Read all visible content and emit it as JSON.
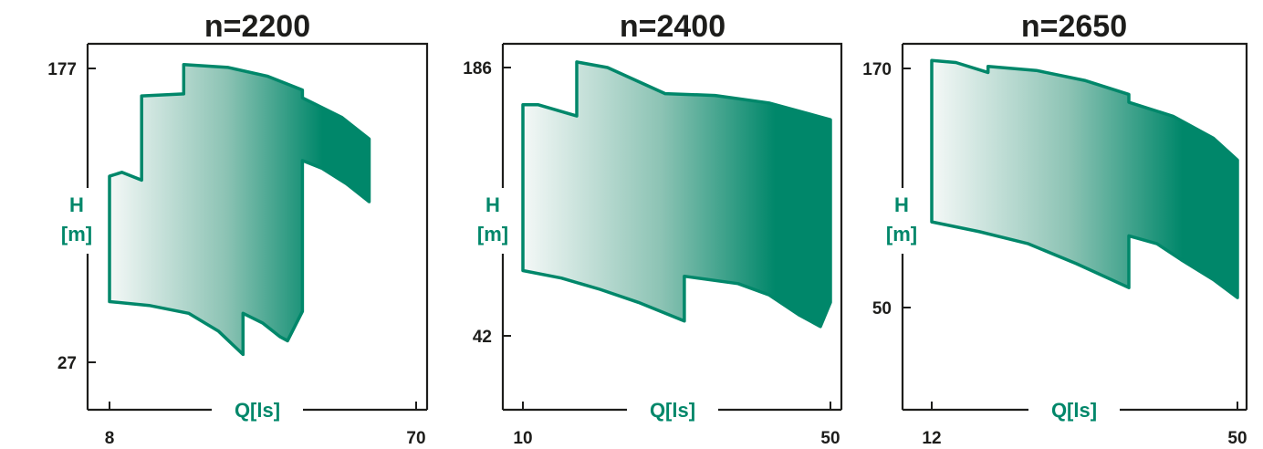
{
  "colors": {
    "accent": "#00876a",
    "gradient_start": "#f4f8f7",
    "axis": "#1d1d1b",
    "text": "#1d1d1b"
  },
  "chart_data": [
    {
      "type": "area",
      "title": "n=2200",
      "xlabel": "Q[ls]",
      "ylabel_lines": [
        "H",
        "[m]"
      ],
      "x_ticks": [
        "8",
        "70"
      ],
      "y_ticks": [
        "177",
        "27"
      ],
      "xlim": [
        8,
        70
      ],
      "ylim": [
        27,
        177
      ],
      "envelope": [
        {
          "x": 8,
          "y": 122
        },
        {
          "x": 10.5,
          "y": 124
        },
        {
          "x": 14.5,
          "y": 120
        },
        {
          "x": 14.5,
          "y": 163
        },
        {
          "x": 23,
          "y": 164
        },
        {
          "x": 23,
          "y": 179
        },
        {
          "x": 32,
          "y": 177.5
        },
        {
          "x": 40,
          "y": 173
        },
        {
          "x": 47,
          "y": 166
        },
        {
          "x": 47,
          "y": 162
        },
        {
          "x": 55,
          "y": 152
        },
        {
          "x": 60.5,
          "y": 141
        },
        {
          "x": 60.5,
          "y": 109
        },
        {
          "x": 56,
          "y": 118
        },
        {
          "x": 51,
          "y": 126
        },
        {
          "x": 47,
          "y": 130
        },
        {
          "x": 47,
          "y": 53
        },
        {
          "x": 44,
          "y": 38
        },
        {
          "x": 42.5,
          "y": 40
        },
        {
          "x": 39,
          "y": 47
        },
        {
          "x": 35,
          "y": 52
        },
        {
          "x": 35,
          "y": 31
        },
        {
          "x": 30,
          "y": 43
        },
        {
          "x": 24,
          "y": 52
        },
        {
          "x": 16,
          "y": 56
        },
        {
          "x": 8,
          "y": 58
        }
      ]
    },
    {
      "type": "area",
      "title": "n=2400",
      "xlabel": "Q[ls]",
      "ylabel_lines": [
        "H",
        "[m]"
      ],
      "x_ticks": [
        "10",
        "50"
      ],
      "y_ticks": [
        "186",
        "42"
      ],
      "xlim": [
        10,
        50
      ],
      "ylim": [
        42,
        186
      ],
      "envelope": [
        {
          "x": 10,
          "y": 166
        },
        {
          "x": 12,
          "y": 166
        },
        {
          "x": 17,
          "y": 160
        },
        {
          "x": 17,
          "y": 189
        },
        {
          "x": 21,
          "y": 186
        },
        {
          "x": 28.5,
          "y": 172
        },
        {
          "x": 35,
          "y": 171
        },
        {
          "x": 42,
          "y": 167
        },
        {
          "x": 50,
          "y": 158
        },
        {
          "x": 50,
          "y": 60
        },
        {
          "x": 48.7,
          "y": 47
        },
        {
          "x": 46,
          "y": 53
        },
        {
          "x": 42,
          "y": 64
        },
        {
          "x": 38,
          "y": 70
        },
        {
          "x": 31,
          "y": 74
        },
        {
          "x": 31,
          "y": 50
        },
        {
          "x": 25,
          "y": 60
        },
        {
          "x": 20,
          "y": 67
        },
        {
          "x": 15,
          "y": 73
        },
        {
          "x": 10,
          "y": 77
        }
      ]
    },
    {
      "type": "area",
      "title": "n=2650",
      "xlabel": "Q[ls]",
      "ylabel_lines": [
        "H",
        "[m]"
      ],
      "x_ticks": [
        "12",
        "50"
      ],
      "y_ticks": [
        "170",
        "50"
      ],
      "xlim": [
        12,
        50
      ],
      "ylim": [
        50,
        170
      ],
      "envelope": [
        {
          "x": 12,
          "y": 174
        },
        {
          "x": 15,
          "y": 173
        },
        {
          "x": 19,
          "y": 168
        },
        {
          "x": 19,
          "y": 171
        },
        {
          "x": 25,
          "y": 169
        },
        {
          "x": 31,
          "y": 164
        },
        {
          "x": 36.5,
          "y": 157
        },
        {
          "x": 36.5,
          "y": 153
        },
        {
          "x": 42,
          "y": 146
        },
        {
          "x": 47,
          "y": 135
        },
        {
          "x": 50,
          "y": 124
        },
        {
          "x": 50,
          "y": 55
        },
        {
          "x": 47,
          "y": 64
        },
        {
          "x": 43,
          "y": 74
        },
        {
          "x": 40,
          "y": 82
        },
        {
          "x": 36.5,
          "y": 86
        },
        {
          "x": 36.5,
          "y": 60
        },
        {
          "x": 30,
          "y": 72
        },
        {
          "x": 24,
          "y": 82
        },
        {
          "x": 18,
          "y": 88
        },
        {
          "x": 12,
          "y": 93
        }
      ]
    }
  ]
}
